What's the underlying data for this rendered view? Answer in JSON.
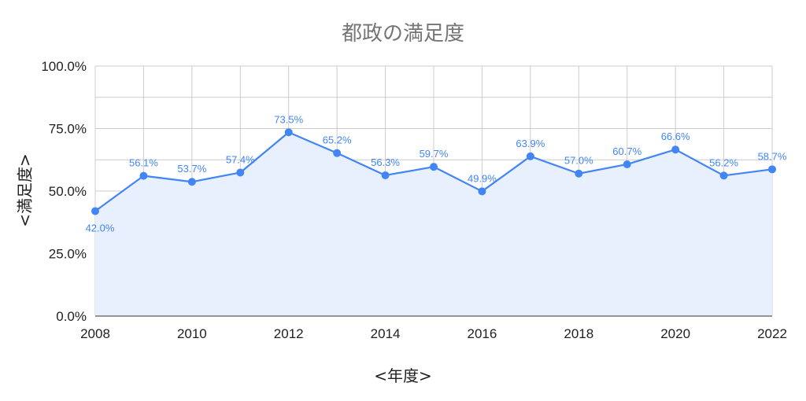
{
  "chart_data": {
    "type": "area",
    "title": "都政の満足度",
    "xlabel": "<年度>",
    "ylabel": "<満足度>",
    "x": [
      2008,
      2009,
      2010,
      2011,
      2012,
      2013,
      2014,
      2015,
      2016,
      2017,
      2018,
      2019,
      2020,
      2021,
      2022
    ],
    "values": [
      42.0,
      56.1,
      53.7,
      57.4,
      73.5,
      65.2,
      56.3,
      59.7,
      49.9,
      63.9,
      57.0,
      60.7,
      66.6,
      56.2,
      58.7
    ],
    "data_labels": [
      "42.0%",
      "56.1%",
      "53.7%",
      "57.4%",
      "73.5%",
      "65.2%",
      "56.3%",
      "59.7%",
      "49.9%",
      "63.9%",
      "57.0%",
      "60.7%",
      "66.6%",
      "56.2%",
      "58.7%"
    ],
    "xticks": [
      "2008",
      "2010",
      "2012",
      "2014",
      "2016",
      "2018",
      "2020",
      "2022"
    ],
    "yticks": [
      "0.0%",
      "25.0%",
      "50.0%",
      "75.0%",
      "100.0%"
    ],
    "ylim": [
      0,
      100
    ],
    "xlim": [
      2008,
      2022
    ],
    "grid": true,
    "colors": {
      "line": "#4285f4",
      "fill": "#e8effd",
      "label": "#4285f4",
      "grid": "#cccccc"
    }
  }
}
